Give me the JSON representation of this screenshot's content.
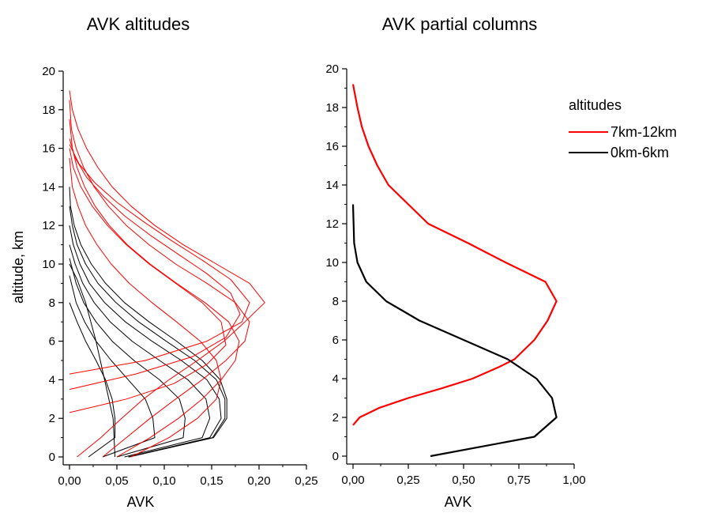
{
  "chart_data": [
    {
      "type": "line",
      "title": "AVK altitudes",
      "xlabel": "AVK",
      "ylabel": "altitude, km",
      "xlim": [
        0,
        0.25
      ],
      "ylim": [
        0,
        20
      ],
      "x_ticks": [
        "0,00",
        "0,05",
        "0,10",
        "0,15",
        "0,20",
        "0,25"
      ],
      "y_ticks": [
        "0",
        "2",
        "4",
        "6",
        "8",
        "10",
        "12",
        "14",
        "16",
        "18",
        "20"
      ],
      "grid": false,
      "series": [
        {
          "color": "#000000",
          "x": [
            0.048,
            0.046,
            0.037,
            0.028,
            0.017,
            0.008,
            0.0
          ],
          "y": [
            0,
            2,
            4,
            6,
            8,
            9.2,
            10
          ]
        },
        {
          "color": "#000000",
          "x": [
            0.02,
            0.048,
            0.048,
            0.045,
            0.038,
            0.028,
            0.017,
            0.008,
            0.0
          ],
          "y": [
            0,
            1,
            2,
            3,
            4,
            5,
            6,
            7,
            8
          ]
        },
        {
          "color": "#000000",
          "x": [
            0.035,
            0.09,
            0.088,
            0.08,
            0.062,
            0.044,
            0.028,
            0.016,
            0.007,
            0.0
          ],
          "y": [
            0,
            1,
            2,
            3,
            4,
            5,
            6,
            7,
            8,
            9.4
          ]
        },
        {
          "color": "#000000",
          "x": [
            0.05,
            0.12,
            0.122,
            0.116,
            0.095,
            0.068,
            0.045,
            0.028,
            0.015,
            0.007,
            0.0
          ],
          "y": [
            0,
            1,
            2,
            3,
            4,
            5,
            6,
            7,
            8,
            9,
            10.3
          ]
        },
        {
          "color": "#000000",
          "x": [
            0.058,
            0.14,
            0.148,
            0.144,
            0.125,
            0.095,
            0.066,
            0.043,
            0.026,
            0.014,
            0.006,
            0.0
          ],
          "y": [
            0,
            1,
            2,
            3,
            4,
            5,
            6,
            7,
            8,
            9,
            10,
            11
          ]
        },
        {
          "color": "#000000",
          "x": [
            0.062,
            0.148,
            0.16,
            0.158,
            0.145,
            0.118,
            0.087,
            0.059,
            0.037,
            0.021,
            0.011,
            0.004,
            0.0
          ],
          "y": [
            0,
            1,
            2,
            3,
            4,
            5,
            6,
            7,
            8,
            9,
            10,
            11,
            12
          ]
        },
        {
          "color": "#000000",
          "x": [
            0.063,
            0.151,
            0.164,
            0.164,
            0.155,
            0.132,
            0.102,
            0.073,
            0.049,
            0.03,
            0.017,
            0.008,
            0.003,
            0.0
          ],
          "y": [
            0,
            1,
            2,
            3,
            4,
            5,
            6,
            7,
            8,
            9,
            10,
            11,
            12,
            13
          ]
        },
        {
          "color": "#000000",
          "x": [
            0.063,
            0.152,
            0.166,
            0.166,
            0.159,
            0.14,
            0.113,
            0.084,
            0.058,
            0.038,
            0.023,
            0.012,
            0.005,
            0.001,
            0.0
          ],
          "y": [
            0,
            1,
            2,
            3,
            4,
            5,
            6,
            7,
            8,
            9,
            10,
            11,
            12,
            13,
            14
          ]
        },
        {
          "color": "#ff0000",
          "x": [
            0.008,
            0.033,
            0.055,
            0.078,
            0.105,
            0.135,
            0.163,
            0.185,
            0.206,
            0.19,
            0.155,
            0.12,
            0.09,
            0.065,
            0.045,
            0.03,
            0.018,
            0.009,
            0.003,
            0.0
          ],
          "y": [
            0,
            1,
            2,
            3,
            4,
            5,
            6,
            7,
            8,
            9,
            10,
            11,
            12,
            13,
            14,
            15,
            16,
            17,
            18,
            19
          ]
        },
        {
          "color": "#ff0000",
          "x": [
            0.035,
            0.06,
            0.085,
            0.112,
            0.14,
            0.165,
            0.185,
            0.19,
            0.175,
            0.145,
            0.112,
            0.084,
            0.06,
            0.041,
            0.026,
            0.015,
            0.007,
            0.002,
            0.0
          ],
          "y": [
            0,
            1,
            2,
            3,
            4,
            5,
            6,
            7,
            8,
            9,
            10,
            11,
            12,
            13,
            14,
            15,
            16,
            17,
            18.5
          ]
        },
        {
          "color": "#ff0000",
          "x": [
            0.05,
            0.085,
            0.115,
            0.14,
            0.16,
            0.175,
            0.179,
            0.168,
            0.143,
            0.113,
            0.085,
            0.061,
            0.042,
            0.027,
            0.016,
            0.008,
            0.003,
            0.0
          ],
          "y": [
            0,
            1,
            2,
            3,
            4,
            5,
            6,
            7,
            8,
            9,
            10,
            11,
            12,
            13,
            14,
            15,
            16,
            17.5
          ]
        },
        {
          "color": "#ff0000",
          "x": [
            0.065,
            0.105,
            0.135,
            0.155,
            0.16,
            0.155,
            0.138,
            0.113,
            0.087,
            0.063,
            0.044,
            0.029,
            0.017,
            0.009,
            0.003,
            0.0
          ],
          "y": [
            0,
            1,
            2,
            3,
            4,
            5,
            6,
            7,
            8,
            9,
            10,
            11,
            12,
            13,
            14,
            15.5
          ]
        },
        {
          "color": "#ff0000",
          "x": [
            0.0,
            0.06,
            0.11,
            0.145,
            0.165,
            0.16,
            0.14,
            0.112,
            0.084,
            0.06,
            0.04,
            0.024,
            0.012,
            0.004,
            0.0
          ],
          "y": [
            2.3,
            3,
            3.8,
            4.8,
            5.8,
            7,
            8,
            9,
            10,
            11,
            12,
            13,
            14,
            15,
            16
          ]
        },
        {
          "color": "#ff0000",
          "x": [
            0.0,
            0.07,
            0.13,
            0.165,
            0.18,
            0.17,
            0.145,
            0.115,
            0.085,
            0.058,
            0.036,
            0.018,
            0.006,
            0.0
          ],
          "y": [
            3.5,
            4.3,
            5.2,
            6.2,
            7.4,
            8.5,
            9.5,
            10.5,
            11.5,
            12.5,
            13.5,
            14.5,
            15.5,
            16.5
          ]
        },
        {
          "color": "#ff0000",
          "x": [
            0.0,
            0.08,
            0.145,
            0.182,
            0.19,
            0.17,
            0.14,
            0.108,
            0.078,
            0.05,
            0.027,
            0.01,
            0.0
          ],
          "y": [
            4.3,
            5,
            6,
            7,
            8,
            9.2,
            10.2,
            11.2,
            12.2,
            13.2,
            14.2,
            15.2,
            16.2
          ]
        }
      ]
    },
    {
      "type": "line",
      "title": "AVK partial columns",
      "xlabel": "AVK",
      "ylabel": "",
      "xlim": [
        0,
        1
      ],
      "ylim": [
        0,
        20
      ],
      "x_ticks": [
        "0,00",
        "0,25",
        "0,50",
        "0,75",
        "1,00"
      ],
      "y_ticks": [
        "0",
        "2",
        "4",
        "6",
        "8",
        "10",
        "12",
        "14",
        "16",
        "18",
        "20"
      ],
      "grid": false,
      "legend": {
        "title": "altitudes",
        "position": "top-right"
      },
      "series": [
        {
          "name": "7km-12km",
          "color": "#ff0000",
          "x": [
            0.0,
            0.03,
            0.12,
            0.25,
            0.4,
            0.54,
            0.66,
            0.73,
            0.82,
            0.88,
            0.92,
            0.87,
            0.69,
            0.52,
            0.34,
            0.25,
            0.16,
            0.11,
            0.07,
            0.04,
            0.02,
            0.0
          ],
          "y": [
            1.6,
            2,
            2.5,
            3,
            3.5,
            4,
            4.6,
            5,
            6,
            7,
            8,
            9,
            10,
            11,
            12,
            13,
            14,
            15,
            16,
            17,
            18,
            19.2
          ]
        },
        {
          "name": "0km-6km",
          "color": "#000000",
          "x": [
            0.35,
            0.82,
            0.92,
            0.9,
            0.83,
            0.7,
            0.5,
            0.3,
            0.15,
            0.06,
            0.02,
            0.005,
            0.0
          ],
          "y": [
            0,
            1,
            2,
            3,
            4,
            5,
            6,
            7,
            8,
            9,
            10,
            11,
            13
          ]
        }
      ]
    }
  ]
}
